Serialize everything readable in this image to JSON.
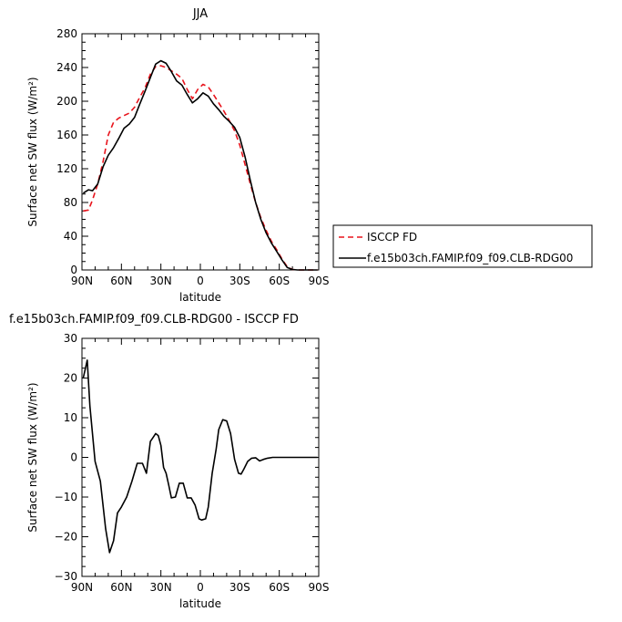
{
  "chart_data": [
    {
      "type": "line",
      "title": "JJA",
      "xlabel": "latitude",
      "ylabel": "Surface net SW flux (W/m²)",
      "xlim": [
        90,
        -90
      ],
      "ylim": [
        0,
        280
      ],
      "yticks": [
        0,
        40,
        80,
        120,
        160,
        200,
        240,
        280
      ],
      "xticks": [
        90,
        60,
        30,
        0,
        -30,
        -60,
        -90
      ],
      "xtick_labels": [
        "90N",
        "60N",
        "30N",
        "0",
        "30S",
        "60S",
        "90S"
      ],
      "legend": "outside-right",
      "series": [
        {
          "name": "ISCCP FD",
          "color": "#e8141c",
          "dash": "dashed",
          "x": [
            89,
            85,
            82,
            78,
            74,
            70,
            66,
            62,
            58,
            54,
            50,
            46,
            42,
            38,
            34,
            30,
            26,
            22,
            18,
            14,
            10,
            6,
            2,
            -2,
            -6,
            -10,
            -14,
            -18,
            -22,
            -26,
            -30,
            -34,
            -38,
            -42,
            -46,
            -50,
            -54,
            -58,
            -62,
            -66,
            -70,
            -74,
            -78,
            -82,
            -86,
            -89
          ],
          "y": [
            70,
            71,
            83,
            102,
            128,
            160,
            175,
            180,
            183,
            186,
            193,
            205,
            216,
            232,
            241,
            242,
            240,
            236,
            232,
            227,
            214,
            203,
            214,
            220,
            217,
            208,
            198,
            188,
            177,
            165,
            148,
            125,
            102,
            80,
            62,
            47,
            34,
            24,
            13,
            4,
            0.5,
            0,
            0,
            0,
            0,
            0
          ]
        },
        {
          "name": "f.e15b03ch.FAMIP.f09_f09.CLB-RDG00",
          "color": "#000000",
          "dash": "solid",
          "x": [
            89,
            85,
            82,
            78,
            74,
            70,
            66,
            62,
            58,
            54,
            50,
            46,
            42,
            38,
            34,
            30,
            26,
            22,
            18,
            14,
            10,
            6,
            2,
            -2,
            -6,
            -10,
            -14,
            -18,
            -22,
            -26,
            -30,
            -34,
            -38,
            -42,
            -46,
            -50,
            -54,
            -58,
            -62,
            -66,
            -70,
            -74,
            -78,
            -82,
            -86,
            -89
          ],
          "y": [
            91,
            95,
            94,
            102,
            122,
            136,
            145,
            156,
            168,
            173,
            181,
            197,
            212,
            228,
            244,
            248,
            245,
            235,
            224,
            219,
            208,
            198,
            203,
            210,
            206,
            197,
            190,
            182,
            176,
            169,
            157,
            134,
            106,
            80,
            60,
            44,
            32,
            22,
            12,
            3,
            0.5,
            0,
            0,
            0,
            0,
            0
          ]
        }
      ]
    },
    {
      "type": "line",
      "title": "f.e15b03ch.FAMIP.f09_f09.CLB-RDG00 - ISCCP FD",
      "xlabel": "latitude",
      "ylabel": "Surface net SW flux (W/m²)",
      "xlim": [
        90,
        -90
      ],
      "ylim": [
        -30,
        30
      ],
      "yticks": [
        -30,
        -20,
        -10,
        0,
        10,
        20,
        30
      ],
      "xticks": [
        90,
        60,
        30,
        0,
        -30,
        -60,
        -90
      ],
      "xtick_labels": [
        "90N",
        "60N",
        "30N",
        "0",
        "30S",
        "60S",
        "90S"
      ],
      "series": [
        {
          "color": "#000000",
          "dash": "solid",
          "x": [
            89,
            86,
            84,
            80,
            76,
            72,
            69,
            66,
            63,
            60,
            56,
            52,
            48,
            44,
            41,
            38,
            36,
            34,
            32,
            30,
            28,
            26,
            24,
            22,
            19,
            16,
            13,
            10,
            7,
            4,
            1,
            -1,
            -4,
            -6,
            -9,
            -12,
            -14,
            -17,
            -20,
            -23,
            -26,
            -29,
            -31,
            -33,
            -36,
            -39,
            -42,
            -45,
            -48,
            -51,
            -55,
            -59,
            -63,
            -66,
            -70,
            -75,
            -80,
            -86,
            -89
          ],
          "y": [
            20,
            24.5,
            13,
            -1,
            -6,
            -18,
            -24,
            -21,
            -14,
            -12.5,
            -10,
            -6,
            -1.5,
            -1.5,
            -4,
            4,
            5,
            6,
            5.5,
            3,
            -2.5,
            -4,
            -7,
            -10.2,
            -10,
            -6.5,
            -6.5,
            -10.2,
            -10.2,
            -12,
            -15.5,
            -15.8,
            -15.5,
            -12.5,
            -4,
            2,
            7,
            9.5,
            9.2,
            6,
            -0.5,
            -4,
            -4.2,
            -3,
            -1,
            -0.2,
            -0.1,
            -0.9,
            -0.5,
            -0.2,
            0,
            0,
            0,
            0,
            0,
            0,
            0,
            0,
            0
          ]
        }
      ]
    }
  ]
}
